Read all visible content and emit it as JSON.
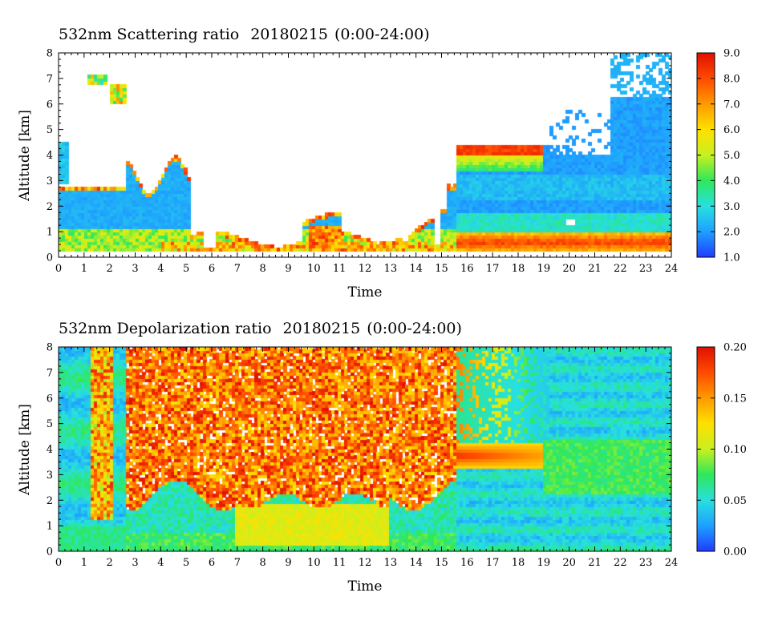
{
  "chart_data": [
    {
      "type": "heatmap",
      "title": "532nm Scattering ratio",
      "date": "20180215",
      "time_range": "(0:00-24:00)",
      "xlabel": "Time",
      "ylabel": "Altitude [km]",
      "xlim": [
        0,
        24
      ],
      "ylim": [
        0,
        8
      ],
      "x_ticks": [
        "0",
        "1",
        "2",
        "3",
        "4",
        "5",
        "6",
        "7",
        "8",
        "9",
        "10",
        "11",
        "12",
        "13",
        "14",
        "15",
        "16",
        "17",
        "18",
        "19",
        "20",
        "21",
        "22",
        "23",
        "24"
      ],
      "y_ticks": [
        "0",
        "1",
        "2",
        "3",
        "4",
        "5",
        "6",
        "7",
        "8"
      ],
      "colorbar": {
        "min": 1.0,
        "max": 9.0,
        "ticks": [
          "1.0",
          "2.0",
          "3.0",
          "4.0",
          "5.0",
          "6.0",
          "7.0",
          "8.0",
          "9.0"
        ],
        "colors": [
          "#1f3cff",
          "#1fa0ff",
          "#27e0e0",
          "#2ee85a",
          "#c8f020",
          "#ffe000",
          "#ff9a00",
          "#ff4a00",
          "#e01000"
        ]
      },
      "features": [
        {
          "desc": "boundary layer aerosol",
          "x_range": [
            0,
            24
          ],
          "alt_range": [
            0.2,
            1.2
          ],
          "value": 4.5
        },
        {
          "desc": "cloud layer",
          "x_range": [
            15.6,
            19
          ],
          "alt_range": [
            4.0,
            4.3
          ],
          "value": 8.5
        },
        {
          "desc": "high aerosol layer",
          "x_range": [
            15.6,
            24
          ],
          "alt_range": [
            0.3,
            1.0
          ],
          "value": 7.5
        }
      ]
    },
    {
      "type": "heatmap",
      "title": "532nm Depolarization ratio",
      "date": "20180215",
      "time_range": "(0:00-24:00)",
      "xlabel": "Time",
      "ylabel": "Altitude [km]",
      "xlim": [
        0,
        24
      ],
      "ylim": [
        0,
        8
      ],
      "x_ticks": [
        "0",
        "1",
        "2",
        "3",
        "4",
        "5",
        "6",
        "7",
        "8",
        "9",
        "10",
        "11",
        "12",
        "13",
        "14",
        "15",
        "16",
        "17",
        "18",
        "19",
        "20",
        "21",
        "22",
        "23",
        "24"
      ],
      "y_ticks": [
        "0",
        "1",
        "2",
        "3",
        "4",
        "5",
        "6",
        "7",
        "8"
      ],
      "colorbar": {
        "min": 0.0,
        "max": 0.2,
        "ticks": [
          "0.00",
          "0.05",
          "0.10",
          "0.15",
          "0.20"
        ],
        "colors": [
          "#1f3cff",
          "#1fa0ff",
          "#27e0e0",
          "#2ee85a",
          "#c8f020",
          "#ffe000",
          "#ff9a00",
          "#ff4a00",
          "#e01000"
        ]
      },
      "features": [
        {
          "desc": "noisy daytime region",
          "x_range": [
            2.5,
            15.6
          ],
          "alt_range": [
            2.5,
            8.0
          ],
          "value": 0.2
        },
        {
          "desc": "near-surface layer",
          "x_range": [
            7,
            13
          ],
          "alt_range": [
            0.3,
            2.0
          ],
          "value": 0.11
        },
        {
          "desc": "night layer",
          "x_range": [
            15.6,
            19
          ],
          "alt_range": [
            3.3,
            4.2
          ],
          "value": 0.17
        }
      ]
    }
  ]
}
